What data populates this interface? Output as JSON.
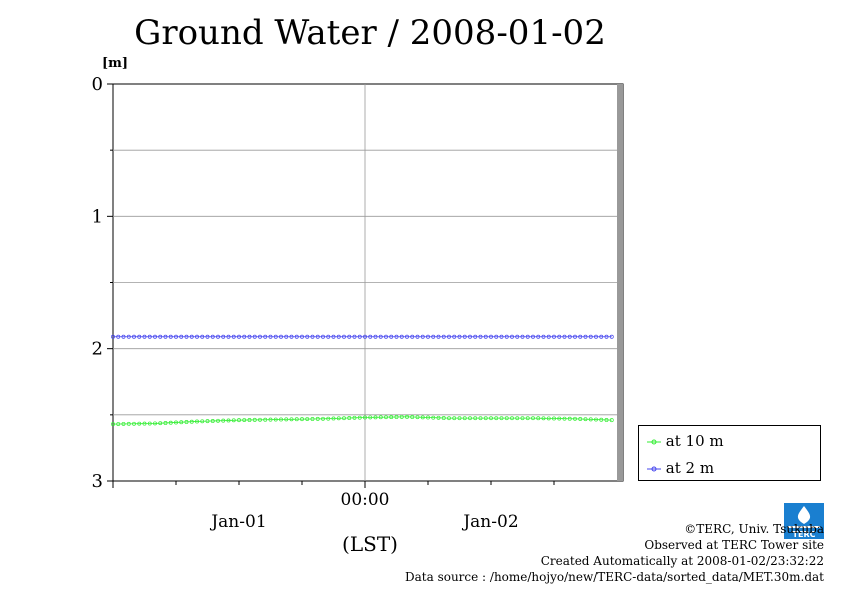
{
  "title": "Ground Water / 2008-01-02",
  "unit_label": "[m]",
  "x_axis": {
    "ticks": [
      {
        "label": "00:00",
        "hour": 24
      }
    ],
    "date_labels": [
      {
        "label": "Jan-01",
        "hour": 12
      },
      {
        "label": "Jan-02",
        "hour": 36
      }
    ],
    "axis_label": "(LST)"
  },
  "legend": {
    "items": [
      {
        "label": "at 10 m",
        "color": "#33ee33"
      },
      {
        "label": "at 2 m",
        "color": "#4444ee"
      }
    ]
  },
  "credits": {
    "copyright": "©TERC, Univ. Tsukuba",
    "observed": "Observed at TERC Tower site",
    "created": "Created Automatically at 2008-01-02/23:32:22",
    "source": "Data source : /home/hojyo/new/TERC-data/sorted_data/MET.30m.dat"
  },
  "logo_text": "TERC",
  "chart_data": {
    "type": "line",
    "title": "Ground Water / 2008-01-02",
    "ylabel": "[m]",
    "xlabel": "(LST)",
    "ylim": [
      0,
      3
    ],
    "y_inverted": true,
    "y_ticks": [
      0,
      1,
      2,
      3
    ],
    "x_range_hours": [
      0,
      48
    ],
    "x_tick_hours": [
      0,
      6,
      12,
      18,
      24,
      30,
      36,
      42
    ],
    "grid": true,
    "legend_position": "right",
    "series": [
      {
        "name": "at 10 m",
        "color": "#33ee33",
        "x_hours": [
          0,
          4,
          8,
          12,
          16,
          20,
          24,
          28,
          32,
          36,
          40,
          44,
          47.5
        ],
        "values": [
          2.57,
          2.565,
          2.55,
          2.54,
          2.535,
          2.53,
          2.52,
          2.515,
          2.525,
          2.525,
          2.525,
          2.53,
          2.54
        ]
      },
      {
        "name": "at 2 m",
        "color": "#4444ee",
        "x_hours": [
          0,
          8,
          16,
          24,
          32,
          40,
          47.5
        ],
        "values": [
          1.91,
          1.91,
          1.91,
          1.91,
          1.91,
          1.91,
          1.91
        ]
      }
    ]
  }
}
